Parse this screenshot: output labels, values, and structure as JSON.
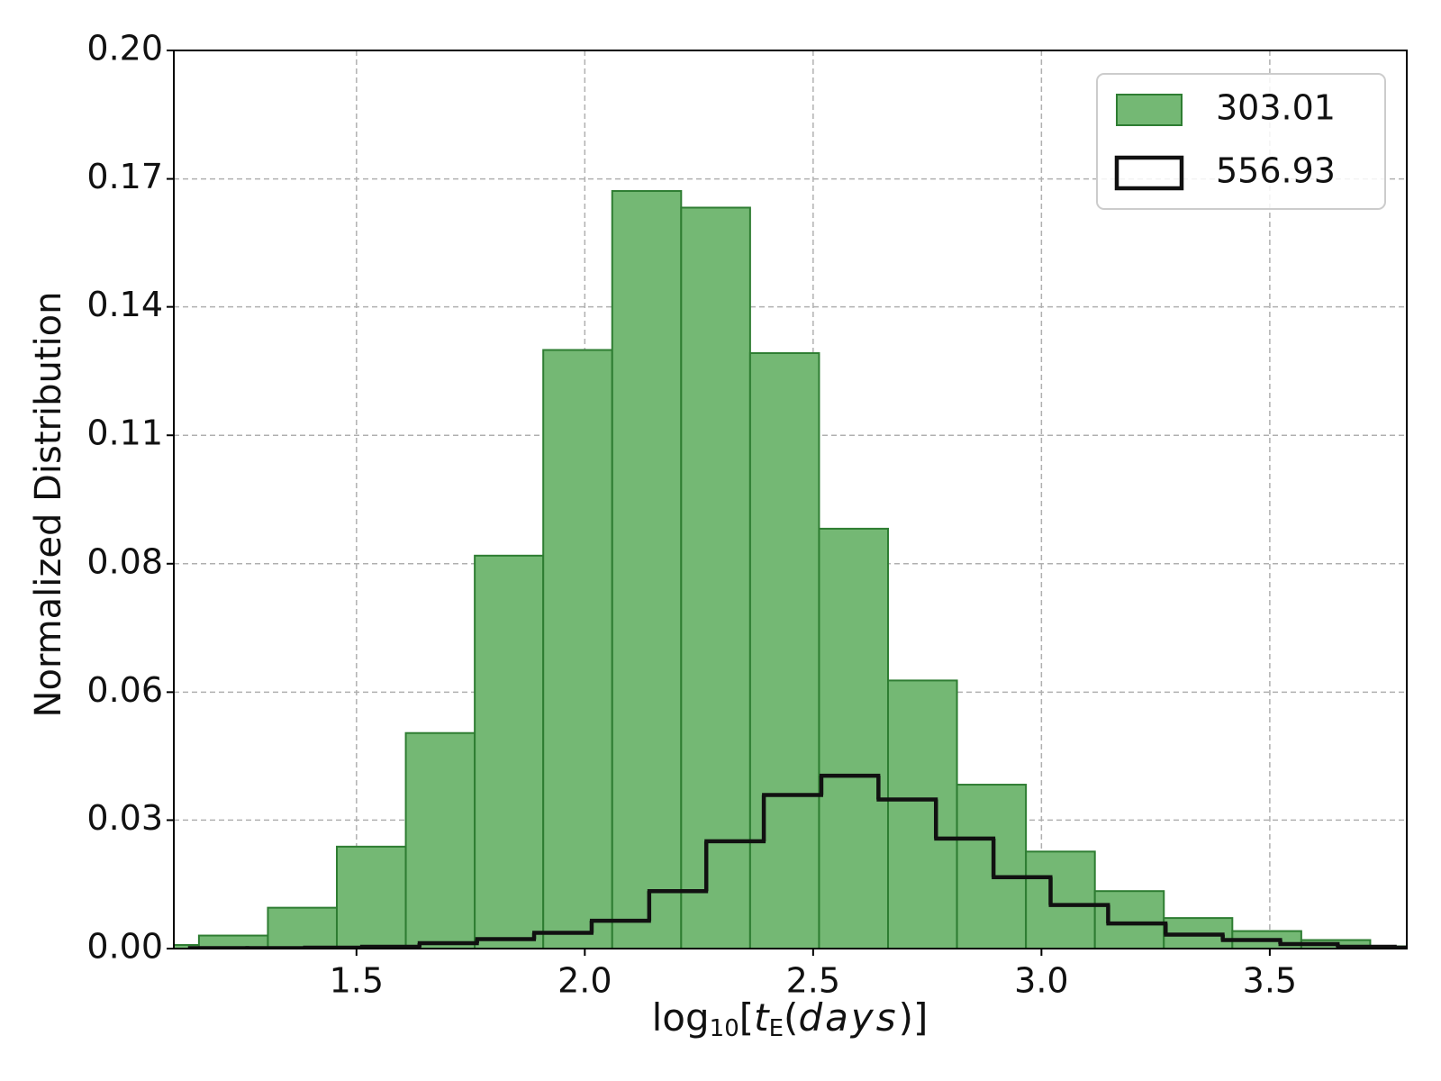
{
  "chart_data": {
    "type": "histogram",
    "xlabel": [
      "log",
      "10",
      "[",
      "t",
      "E",
      "(",
      "days",
      ")]"
    ],
    "ylabel": "Normalized Distribution",
    "xlim": [
      1.1,
      3.8
    ],
    "ylim": [
      0,
      0.2
    ],
    "xticks": [
      1.5,
      {
        "value": 2,
        "label": "2.0"
      },
      2.5,
      {
        "value": 3,
        "label": "3.0"
      },
      3.5
    ],
    "yticks": [
      {
        "value": 0,
        "label": "0.00"
      },
      {
        "value": 0.0286,
        "label": "0.03"
      },
      {
        "value": 0.0571,
        "label": "0.06"
      },
      {
        "value": 0.0857,
        "label": "0.08"
      },
      {
        "value": 0.1143,
        "label": "0.11"
      },
      {
        "value": 0.1429,
        "label": "0.14"
      },
      {
        "value": 0.1714,
        "label": "0.17"
      },
      {
        "value": 0.2,
        "label": "0.20"
      }
    ],
    "grid": true,
    "legend": "upper right",
    "series": [
      {
        "name": "303.01",
        "style": "filled",
        "color": "#74b874",
        "edgecolor": "#2e7d32",
        "bins": [
          1.004,
          1.155,
          1.306,
          1.457,
          1.608,
          1.759,
          1.909,
          2.06,
          2.211,
          2.362,
          2.513,
          2.664,
          2.815,
          2.966,
          3.117,
          3.268,
          3.418,
          3.569,
          3.72,
          3.871
        ],
        "values": [
          0.0008,
          0.0029,
          0.0091,
          0.0227,
          0.048,
          0.0875,
          0.1333,
          0.1687,
          0.165,
          0.1326,
          0.0935,
          0.0597,
          0.0365,
          0.0216,
          0.0128,
          0.0068,
          0.0039,
          0.0019,
          0.0005
        ]
      },
      {
        "name": "556.93",
        "style": "step",
        "color": "#111111",
        "bins": [
          1.135,
          1.261,
          1.387,
          1.512,
          1.638,
          1.764,
          1.889,
          2.015,
          2.141,
          2.266,
          2.392,
          2.518,
          2.643,
          2.769,
          2.895,
          3.02,
          3.146,
          3.272,
          3.397,
          3.523,
          3.649,
          3.774,
          3.9
        ],
        "values": [
          0.0001,
          0.0001,
          0.0002,
          0.0004,
          0.0012,
          0.0021,
          0.0035,
          0.0062,
          0.0128,
          0.0239,
          0.0342,
          0.0385,
          0.0332,
          0.0245,
          0.0159,
          0.0097,
          0.0056,
          0.0031,
          0.0019,
          0.001,
          0.0004,
          0.0002
        ]
      }
    ]
  }
}
